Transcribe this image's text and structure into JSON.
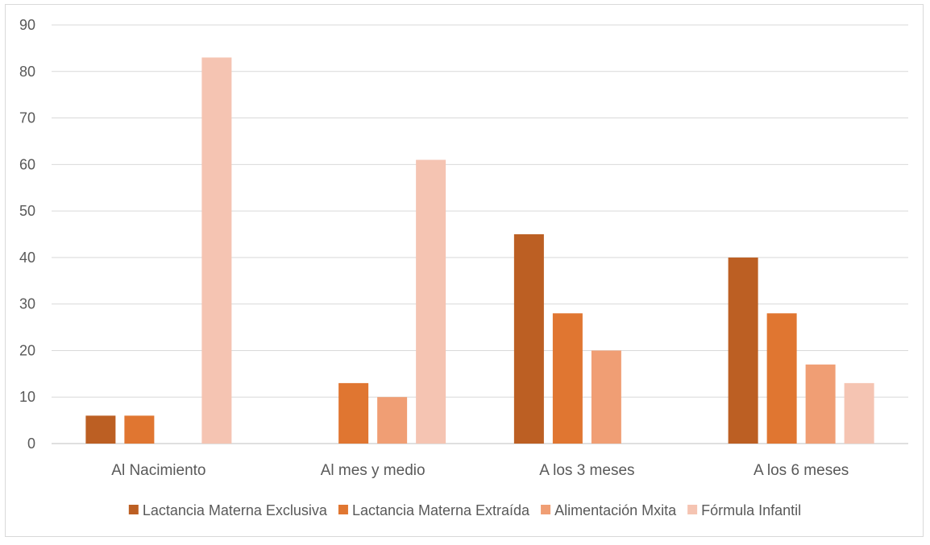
{
  "chart_data": {
    "type": "bar",
    "title": "",
    "xlabel": "",
    "ylabel": "",
    "ylim": [
      0,
      90
    ],
    "yticks": [
      0,
      10,
      20,
      30,
      40,
      50,
      60,
      70,
      80,
      90
    ],
    "grid": true,
    "legend_position": "bottom",
    "categories": [
      "Al Nacimiento",
      "Al mes y medio",
      "A los 3 meses",
      "A los 6 meses"
    ],
    "series": [
      {
        "name": "Lactancia Materna Exclusiva",
        "color": "#bc5f23",
        "values": [
          6,
          0,
          45,
          40
        ]
      },
      {
        "name": "Lactancia Materna Extraída",
        "color": "#e07631",
        "values": [
          6,
          13,
          28,
          28
        ]
      },
      {
        "name": "Alimentación Mxita",
        "color": "#f09e74",
        "values": [
          0,
          10,
          20,
          17
        ]
      },
      {
        "name": "Fórmula Infantil",
        "color": "#f5c4b2",
        "values": [
          83,
          61,
          0,
          13
        ]
      }
    ]
  }
}
